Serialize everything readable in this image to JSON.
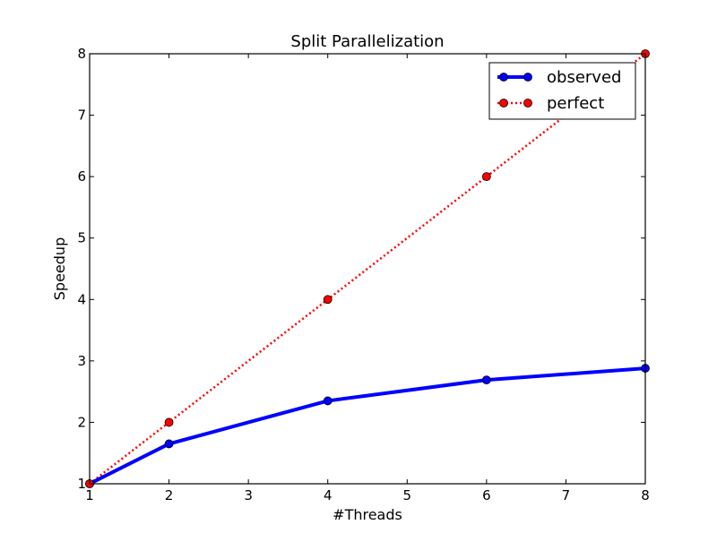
{
  "chart_data": {
    "type": "line",
    "title": "Split Parallelization",
    "xlabel": "#Threads",
    "ylabel": "Speedup",
    "xlim": [
      1,
      8
    ],
    "ylim": [
      1,
      8
    ],
    "xticks": [
      1,
      2,
      3,
      4,
      5,
      6,
      7,
      8
    ],
    "yticks": [
      1,
      2,
      3,
      4,
      5,
      6,
      7,
      8
    ],
    "grid": false,
    "legend_position": "top-right",
    "series": [
      {
        "name": "observed",
        "color": "#0000ff",
        "line_style": "solid",
        "marker_color": "#0000ff",
        "x": [
          1,
          2,
          4,
          6,
          8
        ],
        "y": [
          1.0,
          1.65,
          2.35,
          2.69,
          2.88
        ]
      },
      {
        "name": "perfect",
        "color": "#ff0000",
        "line_style": "dotted",
        "marker_color": "#ff0000",
        "x": [
          1,
          2,
          4,
          6,
          8
        ],
        "y": [
          1,
          2,
          4,
          6,
          8
        ]
      }
    ]
  }
}
